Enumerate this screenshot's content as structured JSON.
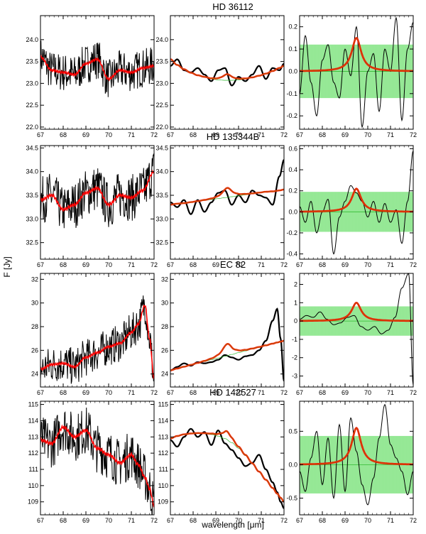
{
  "figure": {
    "xlabel": "wavelength [μm]",
    "ylabel": "F [Jy]"
  },
  "chart_data": [
    {
      "type": "line",
      "title": "HD 36112",
      "xlim": [
        67,
        72
      ],
      "xticks": [
        67,
        68,
        69,
        70,
        71,
        72
      ],
      "colors": {
        "data": "#000000",
        "model": "#ff0000",
        "continuum": "#c05800",
        "band": "#8ae88a",
        "zero": "#33bb33"
      },
      "panels": [
        {
          "kind": "raw",
          "ylim": [
            21.95,
            24.55
          ],
          "yticks": [
            "22.0",
            "22.5",
            "23.0",
            "23.5",
            "24.0"
          ],
          "x": [
            67.0,
            67.5,
            68.0,
            68.5,
            69.0,
            69.5,
            70.0,
            70.5,
            71.0,
            71.5,
            72.0
          ],
          "model": [
            23.6,
            23.3,
            23.25,
            23.2,
            23.45,
            23.55,
            23.1,
            23.3,
            23.25,
            23.35,
            23.4
          ],
          "noise_amp": 0.45
        },
        {
          "kind": "smooth",
          "ylim": [
            21.95,
            24.55
          ],
          "yticks": [
            "22.0",
            "22.5",
            "23.0",
            "23.5",
            "24.0"
          ],
          "x": [
            67.0,
            67.3,
            67.6,
            67.9,
            68.2,
            68.5,
            68.8,
            69.1,
            69.4,
            69.7,
            70.0,
            70.3,
            70.6,
            70.9,
            71.2,
            71.5,
            71.8,
            72.0
          ],
          "data": [
            23.4,
            23.55,
            23.3,
            23.25,
            23.35,
            23.2,
            23.05,
            23.3,
            23.35,
            22.95,
            23.15,
            23.05,
            23.2,
            23.4,
            23.1,
            23.35,
            23.3,
            23.45
          ],
          "continuum": [
            23.55,
            23.42,
            23.32,
            23.24,
            23.18,
            23.14,
            23.1,
            23.08,
            23.07,
            23.07,
            23.08,
            23.1,
            23.13,
            23.17,
            23.22,
            23.28,
            23.35,
            23.4
          ],
          "peak": {
            "center": 69.5,
            "width": 0.25,
            "amp": 0.14
          }
        },
        {
          "kind": "residual",
          "ylim": [
            -0.26,
            0.25
          ],
          "yticks": [
            "-0.2",
            "-0.1",
            "0.0",
            "0.1",
            "0.2"
          ],
          "ytick_values": [
            -0.2,
            -0.1,
            0.0,
            0.1,
            0.2
          ],
          "band": 0.12,
          "x": [
            67.0,
            67.25,
            67.5,
            67.75,
            68.0,
            68.25,
            68.5,
            68.75,
            69.0,
            69.25,
            69.5,
            69.75,
            70.0,
            70.25,
            70.5,
            70.75,
            71.0,
            71.25,
            71.5,
            71.75,
            72.0
          ],
          "data": [
            -0.1,
            0.16,
            -0.05,
            -0.2,
            0.05,
            0.12,
            -0.05,
            -0.12,
            0.1,
            -0.02,
            0.2,
            -0.25,
            0.0,
            0.08,
            -0.18,
            0.1,
            0.0,
            0.24,
            -0.22,
            0.1,
            0.22
          ],
          "peak": {
            "center": 69.5,
            "width": 0.25,
            "amp": 0.15
          }
        }
      ]
    },
    {
      "type": "line",
      "title": "HD 135344B",
      "xlim": [
        67,
        72
      ],
      "xticks": [
        67,
        68,
        69,
        70,
        71,
        72
      ],
      "colors": {
        "data": "#000000",
        "model": "#ff0000",
        "continuum": "#c05800",
        "band": "#8ae88a",
        "zero": "#33bb33"
      },
      "panels": [
        {
          "kind": "raw",
          "ylim": [
            32.15,
            34.55
          ],
          "yticks": [
            "32.5",
            "33.0",
            "33.5",
            "34.0",
            "34.5"
          ],
          "x": [
            67.0,
            67.5,
            68.0,
            68.5,
            69.0,
            69.5,
            70.0,
            70.5,
            71.0,
            71.5,
            72.0
          ],
          "model": [
            33.4,
            33.5,
            33.2,
            33.3,
            33.55,
            33.65,
            33.3,
            33.5,
            33.45,
            33.6,
            34.0
          ],
          "noise_amp": 0.5
        },
        {
          "kind": "smooth",
          "ylim": [
            32.15,
            34.55
          ],
          "yticks": [
            "32.5",
            "33.0",
            "33.5",
            "34.0",
            "34.5"
          ],
          "x": [
            67.0,
            67.3,
            67.6,
            67.9,
            68.2,
            68.5,
            68.8,
            69.1,
            69.4,
            69.7,
            70.0,
            70.3,
            70.6,
            70.9,
            71.2,
            71.5,
            71.8,
            72.0
          ],
          "data": [
            33.35,
            33.25,
            33.4,
            33.1,
            33.4,
            33.15,
            33.35,
            33.55,
            33.6,
            33.3,
            33.5,
            33.35,
            33.6,
            33.5,
            33.45,
            33.3,
            33.9,
            34.25
          ],
          "continuum": [
            33.3,
            33.32,
            33.33,
            33.35,
            33.37,
            33.39,
            33.41,
            33.43,
            33.45,
            33.47,
            33.49,
            33.51,
            33.53,
            33.55,
            33.57,
            33.58,
            33.6,
            33.62
          ],
          "peak": {
            "center": 69.5,
            "width": 0.25,
            "amp": 0.2
          }
        },
        {
          "kind": "residual",
          "ylim": [
            -0.45,
            0.63
          ],
          "yticks": [
            "-0.4",
            "-0.2",
            "0.0",
            "0.2",
            "0.4",
            "0.6"
          ],
          "ytick_values": [
            -0.4,
            -0.2,
            0.0,
            0.2,
            0.4,
            0.6
          ],
          "band": 0.19,
          "x": [
            67.0,
            67.25,
            67.5,
            67.75,
            68.0,
            68.25,
            68.5,
            68.75,
            69.0,
            69.25,
            69.5,
            69.75,
            70.0,
            70.25,
            70.5,
            70.75,
            71.0,
            71.25,
            71.5,
            71.75,
            72.0
          ],
          "data": [
            0.05,
            -0.1,
            0.1,
            -0.2,
            0.0,
            0.12,
            -0.4,
            -0.05,
            0.1,
            0.25,
            0.18,
            0.1,
            -0.05,
            0.1,
            -0.1,
            0.08,
            -0.1,
            0.02,
            -0.3,
            0.1,
            0.58
          ],
          "peak": {
            "center": 69.5,
            "width": 0.25,
            "amp": 0.22
          }
        }
      ]
    },
    {
      "type": "line",
      "title": "EC 82",
      "xlim": [
        67,
        72
      ],
      "xticks": [
        67,
        68,
        69,
        70,
        71,
        72
      ],
      "colors": {
        "data": "#000000",
        "model": "#ff0000",
        "continuum": "#c05800",
        "band": "#8ae88a",
        "zero": "#33bb33"
      },
      "panels": [
        {
          "kind": "raw",
          "ylim": [
            22.9,
            32.5
          ],
          "yticks": [
            "24",
            "26",
            "28",
            "30",
            "32"
          ],
          "x": [
            67.0,
            67.5,
            68.0,
            68.5,
            69.0,
            69.5,
            70.0,
            70.5,
            71.0,
            71.3,
            71.6,
            71.8,
            72.0
          ],
          "model": [
            24.4,
            24.8,
            24.9,
            24.6,
            25.4,
            25.8,
            26.3,
            26.6,
            27.5,
            28.2,
            29.8,
            27.0,
            23.6
          ],
          "noise_amp": 1.6
        },
        {
          "kind": "smooth",
          "ylim": [
            22.9,
            32.5
          ],
          "yticks": [
            "24",
            "26",
            "28",
            "30",
            "32"
          ],
          "x": [
            67.0,
            67.3,
            67.6,
            67.9,
            68.2,
            68.5,
            68.8,
            69.1,
            69.4,
            69.7,
            70.0,
            70.3,
            70.6,
            70.9,
            71.2,
            71.5,
            71.7,
            71.85,
            72.0
          ],
          "data": [
            24.3,
            24.6,
            24.9,
            24.7,
            25.0,
            24.9,
            25.0,
            25.2,
            25.6,
            25.4,
            25.2,
            25.5,
            25.6,
            26.0,
            26.8,
            28.5,
            29.5,
            27.0,
            23.4
          ],
          "continuum": [
            24.3,
            24.45,
            24.6,
            24.75,
            24.9,
            25.05,
            25.2,
            25.35,
            25.5,
            25.65,
            25.8,
            25.95,
            26.1,
            26.25,
            26.4,
            26.55,
            26.65,
            26.72,
            26.8
          ],
          "peak": {
            "center": 69.5,
            "width": 0.25,
            "amp": 1.0
          }
        },
        {
          "kind": "residual",
          "ylim": [
            -3.6,
            2.6
          ],
          "yticks": [
            "-3",
            "-2",
            "-1",
            "0",
            "1",
            "2"
          ],
          "ytick_values": [
            -3,
            -2,
            -1,
            0,
            1,
            2
          ],
          "band": 0.8,
          "x": [
            67.0,
            67.3,
            67.6,
            67.9,
            68.2,
            68.5,
            68.8,
            69.1,
            69.4,
            69.7,
            70.0,
            70.3,
            70.6,
            70.9,
            71.2,
            71.5,
            71.8,
            72.0
          ],
          "data": [
            0.1,
            0.3,
            0.2,
            0.5,
            0.1,
            -0.2,
            -0.1,
            0.2,
            0.3,
            -0.3,
            -0.5,
            -0.3,
            -0.7,
            -0.5,
            0.2,
            1.8,
            2.6,
            -3.5
          ],
          "peak": {
            "center": 69.5,
            "width": 0.25,
            "amp": 1.0
          }
        }
      ]
    },
    {
      "type": "line",
      "title": "HD 142527",
      "xlim": [
        67,
        72
      ],
      "xticks": [
        67,
        68,
        69,
        70,
        71,
        72
      ],
      "colors": {
        "data": "#000000",
        "model": "#ff0000",
        "continuum": "#c05800",
        "band": "#8ae88a",
        "zero": "#33bb33"
      },
      "panels": [
        {
          "kind": "raw",
          "ylim": [
            108.2,
            115.2
          ],
          "yticks": [
            "109",
            "110",
            "111",
            "112",
            "113",
            "114",
            "115"
          ],
          "x": [
            67.0,
            67.5,
            68.0,
            68.5,
            69.0,
            69.5,
            70.0,
            70.5,
            71.0,
            71.3,
            71.6,
            71.8,
            72.0
          ],
          "model": [
            112.8,
            112.6,
            113.6,
            113.0,
            113.4,
            112.3,
            111.9,
            111.4,
            111.9,
            111.3,
            110.5,
            109.8,
            108.8
          ],
          "noise_amp": 1.5
        },
        {
          "kind": "smooth",
          "ylim": [
            108.2,
            115.2
          ],
          "yticks": [
            "109",
            "110",
            "111",
            "112",
            "113",
            "114",
            "115"
          ],
          "x": [
            67.0,
            67.3,
            67.6,
            67.9,
            68.2,
            68.5,
            68.8,
            69.1,
            69.4,
            69.7,
            70.0,
            70.3,
            70.6,
            70.9,
            71.2,
            71.5,
            71.7,
            71.85,
            72.0
          ],
          "data": [
            112.8,
            112.4,
            113.0,
            113.5,
            113.0,
            113.3,
            112.5,
            113.4,
            112.6,
            112.2,
            111.7,
            111.2,
            111.4,
            111.9,
            111.0,
            110.2,
            109.6,
            109.0,
            108.6
          ],
          "continuum": [
            112.9,
            113.05,
            113.15,
            113.2,
            113.22,
            113.2,
            113.15,
            113.05,
            112.9,
            112.65,
            112.3,
            111.85,
            111.35,
            110.85,
            110.35,
            109.85,
            109.5,
            109.25,
            109.0
          ],
          "peak": {
            "center": 69.5,
            "width": 0.25,
            "amp": 0.5
          }
        },
        {
          "kind": "residual",
          "ylim": [
            -0.75,
            0.95
          ],
          "yticks": [
            "-0.5",
            "0.0",
            "0.5"
          ],
          "ytick_values": [
            -0.5,
            0.0,
            0.5
          ],
          "band": 0.43,
          "x": [
            67.0,
            67.25,
            67.5,
            67.75,
            68.0,
            68.25,
            68.5,
            68.75,
            69.0,
            69.25,
            69.5,
            69.75,
            70.0,
            70.25,
            70.5,
            70.75,
            71.0,
            71.25,
            71.5,
            71.75,
            72.0
          ],
          "data": [
            -0.1,
            -0.4,
            0.1,
            0.5,
            -0.3,
            0.4,
            -0.5,
            0.6,
            -0.4,
            0.7,
            0.2,
            -0.3,
            -0.6,
            -0.2,
            0.4,
            0.9,
            0.3,
            0.1,
            -0.1,
            -0.45,
            -0.1
          ],
          "peak": {
            "center": 69.5,
            "width": 0.25,
            "amp": 0.55
          }
        }
      ]
    }
  ]
}
